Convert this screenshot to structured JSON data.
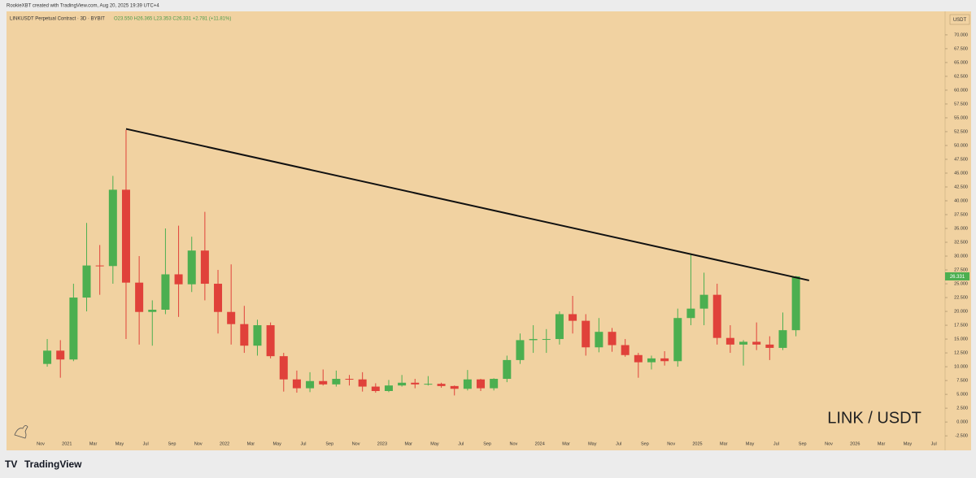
{
  "header": {
    "credit": "RookieXBT created with TradingView.com, Aug 20, 2025 19:39 UTC+4",
    "symbol": "LINKUSDT Perpetual Contract · 3D · BYBIT",
    "ohlc": "O23.550 H26.365 L23.353 C26.331 +2.781 (+11.81%)"
  },
  "footer": {
    "brand": "TradingView"
  },
  "chart_data": {
    "type": "candlestick",
    "watermark": "LINK / USDT",
    "currency": "USDT",
    "up_color": "#4caf50",
    "down_color": "#e0413a",
    "categories": [
      "2020-11",
      "2020-12",
      "2021-01",
      "2021-02",
      "2021-03",
      "2021-04",
      "2021-05",
      "2021-06",
      "2021-07",
      "2021-08",
      "2021-09",
      "2021-10",
      "2021-11",
      "2021-12",
      "2022-01",
      "2022-02",
      "2022-03",
      "2022-04",
      "2022-05",
      "2022-06",
      "2022-07",
      "2022-08",
      "2022-09",
      "2022-10",
      "2022-11",
      "2022-12",
      "2023-01",
      "2023-02",
      "2023-03",
      "2023-04",
      "2023-05",
      "2023-06",
      "2023-07",
      "2023-08",
      "2023-09",
      "2023-10",
      "2023-11",
      "2023-12",
      "2024-01",
      "2024-02",
      "2024-03",
      "2024-04",
      "2024-05",
      "2024-06",
      "2024-07",
      "2024-08",
      "2024-09",
      "2024-10",
      "2024-11",
      "2024-12",
      "2025-01",
      "2025-02",
      "2025-03",
      "2025-04",
      "2025-05",
      "2025-06",
      "2025-07",
      "2025-08"
    ],
    "open": [
      10.5,
      12.9,
      11.3,
      22.5,
      28.3,
      28.2,
      42.0,
      25.2,
      19.9,
      20.3,
      26.7,
      24.9,
      31.0,
      25.0,
      19.9,
      17.7,
      13.8,
      17.5,
      11.9,
      7.7,
      6.1,
      7.4,
      6.8,
      7.8,
      7.7,
      6.4,
      5.6,
      6.6,
      7.1,
      6.8,
      6.9,
      6.5,
      6.0,
      7.7,
      6.1,
      7.8,
      11.2,
      14.8,
      15.0,
      15.0,
      19.5,
      18.3,
      13.5,
      16.3,
      13.9,
      12.1,
      10.8,
      11.5,
      11.0,
      18.8,
      20.5,
      23.0,
      15.2,
      14.0,
      14.5,
      14.0,
      13.4,
      16.6
    ],
    "high": [
      15.0,
      14.8,
      25.0,
      36.0,
      32.0,
      44.5,
      52.8,
      30.0,
      22.0,
      35.0,
      35.5,
      33.5,
      38.0,
      27.5,
      28.5,
      21.0,
      18.5,
      18.0,
      12.5,
      9.3,
      9.0,
      9.5,
      9.3,
      8.5,
      9.0,
      7.0,
      7.6,
      8.5,
      7.8,
      8.3,
      7.1,
      6.6,
      9.4,
      7.8,
      7.9,
      12.0,
      16.0,
      17.5,
      16.8,
      20.0,
      22.8,
      19.5,
      18.8,
      17.0,
      15.0,
      12.5,
      12.0,
      12.8,
      20.5,
      30.5,
      27.0,
      25.0,
      17.5,
      14.8,
      18.0,
      15.5,
      19.8,
      26.4
    ],
    "low": [
      10.0,
      8.0,
      11.0,
      20.0,
      23.0,
      25.0,
      15.0,
      14.0,
      13.8,
      19.5,
      19.0,
      23.5,
      22.0,
      16.0,
      14.0,
      12.5,
      12.0,
      11.5,
      5.5,
      5.3,
      5.4,
      6.6,
      6.4,
      6.6,
      5.5,
      5.3,
      5.4,
      6.4,
      6.1,
      6.6,
      6.2,
      4.8,
      5.7,
      5.6,
      5.7,
      7.2,
      10.5,
      12.5,
      12.5,
      14.0,
      16.0,
      12.0,
      12.6,
      12.7,
      11.8,
      8.0,
      9.5,
      10.2,
      10.0,
      17.5,
      17.5,
      14.0,
      12.5,
      10.2,
      13.0,
      11.2,
      13.0,
      15.5
    ],
    "close": [
      12.9,
      11.3,
      22.5,
      28.3,
      28.2,
      42.0,
      25.2,
      19.9,
      20.3,
      26.7,
      24.9,
      31.0,
      25.0,
      19.9,
      17.7,
      13.8,
      17.5,
      11.9,
      7.7,
      6.1,
      7.4,
      6.8,
      7.8,
      7.7,
      6.4,
      5.6,
      6.6,
      7.1,
      6.8,
      6.9,
      6.5,
      6.0,
      7.7,
      6.1,
      7.8,
      11.2,
      14.8,
      15.0,
      15.0,
      19.5,
      18.3,
      13.5,
      16.3,
      13.9,
      12.1,
      10.8,
      11.5,
      11.0,
      18.8,
      20.5,
      23.0,
      15.2,
      14.0,
      14.5,
      14.0,
      13.4,
      16.6,
      26.331
    ],
    "trendline": {
      "x": [
        "2021-05",
        "2025-10"
      ],
      "y": [
        53.0,
        25.6
      ],
      "color": "#111111"
    },
    "x_labels": [
      "Nov",
      "2021",
      "Mar",
      "May",
      "Jul",
      "Sep",
      "Nov",
      "2022",
      "Mar",
      "May",
      "Jul",
      "Sep",
      "Nov",
      "2023",
      "Mar",
      "May",
      "Jul",
      "Sep",
      "Nov",
      "2024",
      "Mar",
      "May",
      "Jul",
      "Sep",
      "Nov",
      "2025",
      "Mar",
      "May",
      "Jul",
      "Sep",
      "Nov",
      "2026",
      "Mar",
      "May",
      "Jul"
    ],
    "ylim": [
      -4.25,
      71.9
    ],
    "yticks": [
      {
        "value": -2.5,
        "label": "-2.500"
      },
      {
        "value": 0,
        "label": "0.000"
      },
      {
        "value": 2.5,
        "label": "2.500"
      },
      {
        "value": 5,
        "label": "5.000"
      },
      {
        "value": 7.5,
        "label": "7.500"
      },
      {
        "value": 10,
        "label": "10.000"
      },
      {
        "value": 12.5,
        "label": "12.500"
      },
      {
        "value": 15,
        "label": "15.000"
      },
      {
        "value": 17.5,
        "label": "17.500"
      },
      {
        "value": 20,
        "label": "20.000"
      },
      {
        "value": 22.5,
        "label": "22.500"
      },
      {
        "value": 25,
        "label": "25.000"
      },
      {
        "value": 27.5,
        "label": "27.500"
      },
      {
        "value": 30,
        "label": "30.000"
      },
      {
        "value": 32.5,
        "label": "32.500"
      },
      {
        "value": 35,
        "label": "35.000"
      },
      {
        "value": 37.5,
        "label": "37.500"
      },
      {
        "value": 40,
        "label": "40.000"
      },
      {
        "value": 42.5,
        "label": "42.500"
      },
      {
        "value": 45,
        "label": "45.000"
      },
      {
        "value": 47.5,
        "label": "47.500"
      },
      {
        "value": 50,
        "label": "50.000"
      },
      {
        "value": 52.5,
        "label": "52.500"
      },
      {
        "value": 55,
        "label": "55.000"
      },
      {
        "value": 57.5,
        "label": "57.500"
      },
      {
        "value": 60,
        "label": "60.000"
      },
      {
        "value": 62.5,
        "label": "62.500"
      },
      {
        "value": 65,
        "label": "65.000"
      },
      {
        "value": 67.5,
        "label": "67.500"
      },
      {
        "value": 70,
        "label": "70.000"
      }
    ]
  }
}
